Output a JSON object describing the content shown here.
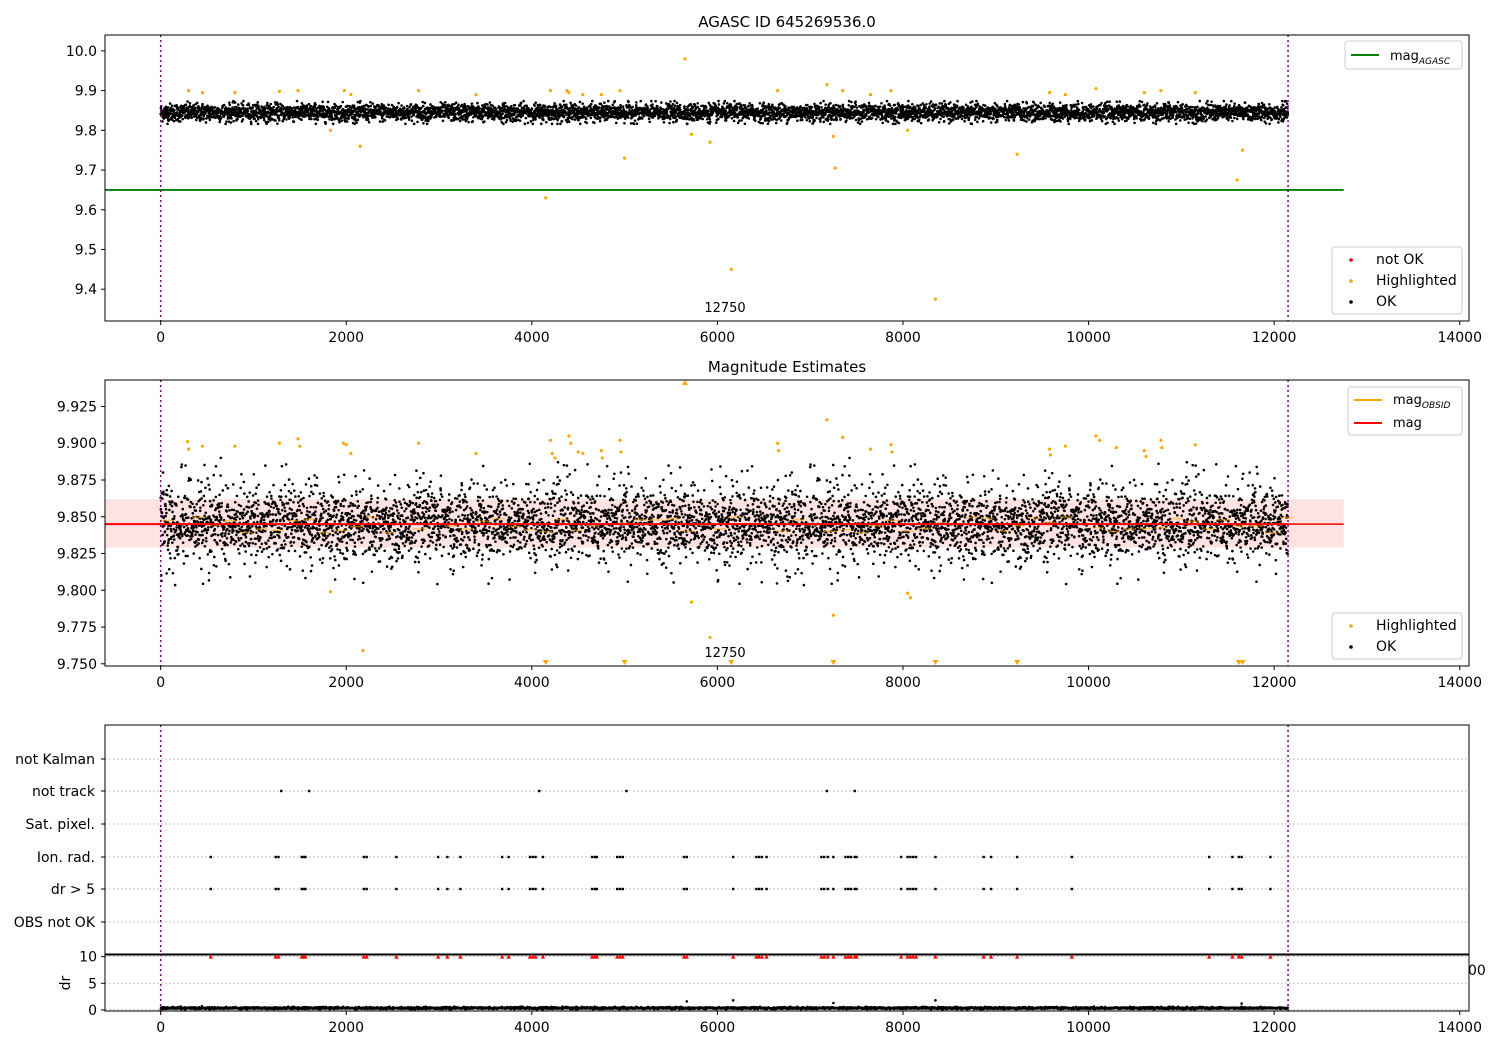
{
  "figure": {
    "annotation_label": "12750",
    "overlap_tick_fragment": "00"
  },
  "chart_data": [
    {
      "type": "scatter",
      "title": "AGASC ID 645269536.0",
      "xlabel": "",
      "ylabel": "",
      "xlim": [
        -600,
        14100
      ],
      "ylim": [
        9.32,
        10.04
      ],
      "xticks": [
        0,
        2000,
        4000,
        6000,
        8000,
        10000,
        12000,
        14000
      ],
      "yticks": [
        9.4,
        9.5,
        9.6,
        9.7,
        9.8,
        9.9,
        10.0
      ],
      "ytick_labels": [
        "9.4",
        "9.5",
        "9.6",
        "9.7",
        "9.8",
        "9.9",
        "10.0"
      ],
      "vlines": [
        0,
        12150
      ],
      "hline": {
        "name": "mag_AGASC",
        "y": 9.65,
        "x_range": [
          -600,
          12750
        ],
        "color": "#008000"
      },
      "ok_band": {
        "center": 9.845,
        "spread": 0.022,
        "count": 12150,
        "color": "#000000"
      },
      "highlighted": {
        "color": "#ffa500",
        "points": [
          [
            300,
            9.9
          ],
          [
            450,
            9.895
          ],
          [
            800,
            9.895
          ],
          [
            1280,
            9.898
          ],
          [
            1480,
            9.9
          ],
          [
            1830,
            9.8
          ],
          [
            1980,
            9.9
          ],
          [
            2050,
            9.89
          ],
          [
            2150,
            9.76
          ],
          [
            2780,
            9.9
          ],
          [
            3400,
            9.89
          ],
          [
            4150,
            9.63
          ],
          [
            4200,
            9.9
          ],
          [
            4380,
            9.9
          ],
          [
            4400,
            9.895
          ],
          [
            4550,
            9.89
          ],
          [
            4750,
            9.89
          ],
          [
            4950,
            9.9
          ],
          [
            5000,
            9.73
          ],
          [
            5650,
            9.98
          ],
          [
            5720,
            9.79
          ],
          [
            5920,
            9.77
          ],
          [
            6150,
            9.45
          ],
          [
            6650,
            9.9
          ],
          [
            7180,
            9.915
          ],
          [
            7250,
            9.785
          ],
          [
            7270,
            9.705
          ],
          [
            7350,
            9.9
          ],
          [
            7650,
            9.89
          ],
          [
            7870,
            9.9
          ],
          [
            8050,
            9.8
          ],
          [
            8350,
            9.375
          ],
          [
            9230,
            9.74
          ],
          [
            9580,
            9.895
          ],
          [
            9750,
            9.89
          ],
          [
            10080,
            9.905
          ],
          [
            10600,
            9.895
          ],
          [
            10780,
            9.9
          ],
          [
            11150,
            9.895
          ],
          [
            11600,
            9.675
          ],
          [
            11660,
            9.75
          ]
        ]
      },
      "legend_series": [
        {
          "name": "not OK",
          "color": "#ff0000"
        },
        {
          "name": "Highlighted",
          "color": "#ffa500"
        },
        {
          "name": "OK",
          "color": "#000000"
        }
      ],
      "legend_line": {
        "name": "mag",
        "subscript": "AGASC",
        "color": "#008000"
      },
      "legend_placement": [
        "upper-right",
        "lower-right"
      ]
    },
    {
      "type": "scatter",
      "title": "Magnitude Estimates",
      "xlabel": "",
      "ylabel": "",
      "xlim": [
        -600,
        14100
      ],
      "ylim": [
        9.7485,
        9.943
      ],
      "xticks": [
        0,
        2000,
        4000,
        6000,
        8000,
        10000,
        12000,
        14000
      ],
      "yticks": [
        9.75,
        9.775,
        9.8,
        9.825,
        9.85,
        9.875,
        9.9,
        9.925
      ],
      "ytick_labels": [
        "9.750",
        "9.775",
        "9.800",
        "9.825",
        "9.850",
        "9.875",
        "9.900",
        "9.925"
      ],
      "vlines": [
        0,
        12150
      ],
      "band": {
        "y_range": [
          9.829,
          9.862
        ],
        "x_range": [
          -600,
          12750
        ],
        "color": "#ff9999"
      },
      "mag_line": {
        "y": 9.845,
        "x_range": [
          -600,
          12150
        ],
        "color": "#ff0000"
      },
      "mag_obsid_segments": {
        "color": "#ffa500",
        "y": 9.845
      },
      "ok_band": {
        "center": 9.845,
        "spread": 0.02,
        "count": 12150,
        "color": "#000000"
      },
      "highlighted": {
        "color": "#ffa500",
        "points": [
          [
            290,
            9.901
          ],
          [
            300,
            9.896
          ],
          [
            450,
            9.898
          ],
          [
            800,
            9.898
          ],
          [
            1280,
            9.9
          ],
          [
            1480,
            9.903
          ],
          [
            1500,
            9.898
          ],
          [
            1830,
            9.799
          ],
          [
            1970,
            9.9
          ],
          [
            2000,
            9.899
          ],
          [
            2050,
            9.893
          ],
          [
            2180,
            9.759
          ],
          [
            2780,
            9.9
          ],
          [
            3400,
            9.893
          ],
          [
            4200,
            9.902
          ],
          [
            4220,
            9.893
          ],
          [
            4250,
            9.89
          ],
          [
            4400,
            9.905
          ],
          [
            4420,
            9.9
          ],
          [
            4500,
            9.894
          ],
          [
            4550,
            9.893
          ],
          [
            4750,
            9.895
          ],
          [
            4760,
            9.89
          ],
          [
            4950,
            9.902
          ],
          [
            4960,
            9.894
          ],
          [
            5720,
            9.792
          ],
          [
            5920,
            9.768
          ],
          [
            6650,
            9.9
          ],
          [
            6660,
            9.895
          ],
          [
            7180,
            9.916
          ],
          [
            7250,
            9.783
          ],
          [
            7350,
            9.904
          ],
          [
            7650,
            9.896
          ],
          [
            7870,
            9.899
          ],
          [
            7880,
            9.894
          ],
          [
            8050,
            9.798
          ],
          [
            8080,
            9.795
          ],
          [
            9580,
            9.896
          ],
          [
            9590,
            9.892
          ],
          [
            9750,
            9.898
          ],
          [
            10080,
            9.905
          ],
          [
            10120,
            9.902
          ],
          [
            10300,
            9.897
          ],
          [
            10600,
            9.895
          ],
          [
            10620,
            9.891
          ],
          [
            10780,
            9.902
          ],
          [
            10790,
            9.897
          ],
          [
            11150,
            9.899
          ]
        ]
      },
      "out_of_range_markers": {
        "color": "#ffa500",
        "top": [
          5650
        ],
        "bottom": [
          4150,
          5000,
          6150,
          7250,
          8350,
          9230,
          11620,
          11660
        ]
      },
      "legend_series": [
        {
          "name": "Highlighted",
          "color": "#ffa500"
        },
        {
          "name": "OK",
          "color": "#000000"
        }
      ],
      "legend_lines": [
        {
          "name": "mag",
          "subscript": "OBSID",
          "color": "#ffa500"
        },
        {
          "name": "mag",
          "subscript": "",
          "color": "#ff0000"
        }
      ],
      "legend_placement": [
        "upper-right",
        "lower-right"
      ]
    },
    {
      "type": "scatter",
      "title": "",
      "xlabel": "",
      "ylabel": "",
      "xlim": [
        -600,
        14100
      ],
      "categories": [
        "not Kalman",
        "not track",
        "Sat. pixel.",
        "Ion. rad.",
        "dr > 5",
        "OBS not OK"
      ],
      "vlines": [
        0,
        12150
      ],
      "flags": {
        "not Kalman": [],
        "not track": [
          1300,
          1600,
          4080,
          5020,
          7180,
          7480
        ],
        "Sat. pixel.": [],
        "Ion. rad.": [
          540,
          1240,
          1270,
          1520,
          1540,
          1560,
          2190,
          2220,
          2540,
          2990,
          3090,
          3230,
          3680,
          3750,
          3980,
          4010,
          4040,
          4120,
          4650,
          4680,
          4700,
          4920,
          4950,
          4980,
          5640,
          5670,
          6170,
          6420,
          6450,
          6480,
          6530,
          7120,
          7150,
          7190,
          7250,
          7380,
          7410,
          7440,
          7480,
          7500,
          7980,
          8050,
          8080,
          8110,
          8140,
          8350,
          8870,
          8950,
          9230,
          9820,
          11300,
          11550,
          11620,
          11650,
          11960
        ],
        "dr > 5": [
          540,
          1240,
          1270,
          1520,
          1540,
          1560,
          2190,
          2220,
          2540,
          2990,
          3090,
          3230,
          3680,
          3750,
          3980,
          4010,
          4040,
          4120,
          4650,
          4680,
          4700,
          4920,
          4950,
          4980,
          5640,
          5670,
          6170,
          6420,
          6450,
          6480,
          6530,
          7120,
          7150,
          7190,
          7250,
          7380,
          7410,
          7440,
          7480,
          7500,
          7980,
          8050,
          8080,
          8110,
          8140,
          8350,
          8870,
          8950,
          9230,
          9820,
          11300,
          11550,
          11620,
          11650,
          11960
        ],
        "OBS not OK": []
      }
    },
    {
      "type": "scatter",
      "title": "",
      "xlabel": "",
      "ylabel": "dr",
      "xlim": [
        -600,
        14100
      ],
      "ylim": [
        -0.2,
        10.5
      ],
      "xticks": [
        0,
        2000,
        4000,
        6000,
        8000,
        10000,
        12000,
        14000
      ],
      "yticks": [
        0,
        5,
        10
      ],
      "ytick_labels": [
        "0",
        "5",
        "10"
      ],
      "vlines": [
        0,
        12150
      ],
      "baseline": {
        "center": 0.35,
        "spread": 0.2,
        "count": 12150,
        "color": "#000000"
      },
      "spikes": [
        [
          5670,
          1.6
        ],
        [
          6170,
          1.8
        ],
        [
          7250,
          1.3
        ],
        [
          8350,
          1.8
        ],
        [
          11650,
          1.2
        ]
      ],
      "clipped_markers": {
        "color": "#ff0000",
        "y": 10
      },
      "clipped_color": "#ff0000"
    }
  ]
}
